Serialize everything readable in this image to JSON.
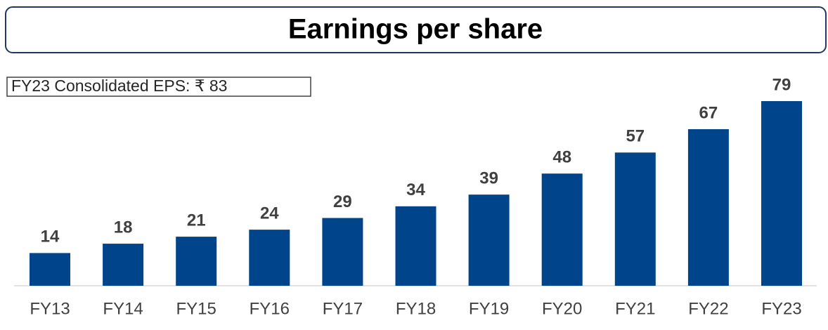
{
  "chart_data": {
    "type": "bar",
    "title": "Earnings per share",
    "annotation": "FY23 Consolidated EPS: ₹ 83",
    "categories": [
      "FY13",
      "FY14",
      "FY15",
      "FY16",
      "FY17",
      "FY18",
      "FY19",
      "FY20",
      "FY21",
      "FY22",
      "FY23"
    ],
    "values": [
      14,
      18,
      21,
      24,
      29,
      34,
      39,
      48,
      57,
      67,
      79
    ],
    "color": "#00458c"
  }
}
